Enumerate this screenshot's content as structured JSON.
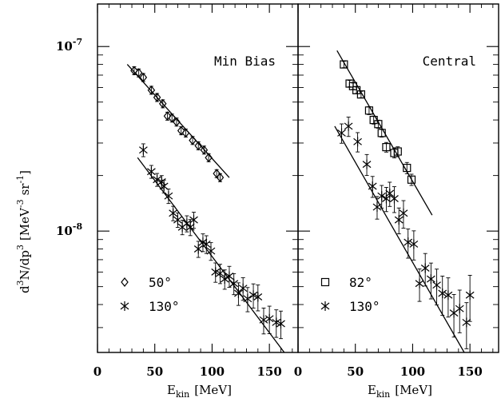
{
  "chart_data": [
    {
      "panel": "left",
      "type": "scatter",
      "title": "Min Bias",
      "xlabel_main": "E",
      "xlabel_sub": "kin",
      "xlabel_unit": "[MeV]",
      "ylabel_main": "d",
      "ylabel_sup1": "3",
      "ylabel_mid": "N/dp",
      "ylabel_sup2": "3",
      "ylabel_unit_pre": "[MeV",
      "ylabel_sup3": "-3",
      "ylabel_unit_mid": "sr",
      "ylabel_sup4": "-1",
      "ylabel_unit_post": "]",
      "xlim": [
        0,
        175
      ],
      "ylim": [
        2.2e-09,
        1.7e-07
      ],
      "yscale": "log",
      "x_ticks": [
        {
          "v": 0,
          "label": "0"
        },
        {
          "v": 50,
          "label": "50"
        },
        {
          "v": 100,
          "label": "100"
        },
        {
          "v": 150,
          "label": "150"
        }
      ],
      "y_ticks": [
        {
          "v": 1e-07,
          "base": "10",
          "exp": "-7"
        },
        {
          "v": 1e-08,
          "base": "10",
          "exp": "-8"
        }
      ],
      "series": [
        {
          "name": "50°",
          "legend_text": "50°",
          "marker": "diamond",
          "points": [
            {
              "x": 32,
              "y": 7.4e-08,
              "err": 0.05
            },
            {
              "x": 36,
              "y": 7.2e-08,
              "err": 0.05
            },
            {
              "x": 40,
              "y": 6.8e-08,
              "err": 0.05
            },
            {
              "x": 47,
              "y": 5.8e-08,
              "err": 0.05
            },
            {
              "x": 52,
              "y": 5.3e-08,
              "err": 0.05
            },
            {
              "x": 57,
              "y": 4.9e-08,
              "err": 0.05
            },
            {
              "x": 61,
              "y": 4.2e-08,
              "err": 0.05
            },
            {
              "x": 65,
              "y": 4.1e-08,
              "err": 0.05
            },
            {
              "x": 69,
              "y": 3.9e-08,
              "err": 0.05
            },
            {
              "x": 73,
              "y": 3.5e-08,
              "err": 0.05
            },
            {
              "x": 77,
              "y": 3.4e-08,
              "err": 0.05
            },
            {
              "x": 83,
              "y": 3.1e-08,
              "err": 0.05
            },
            {
              "x": 88,
              "y": 2.9e-08,
              "err": 0.05
            },
            {
              "x": 93,
              "y": 2.75e-08,
              "err": 0.05
            },
            {
              "x": 97,
              "y": 2.5e-08,
              "err": 0.05
            },
            {
              "x": 104,
              "y": 2.05e-08,
              "err": 0.05
            },
            {
              "x": 107,
              "y": 1.95e-08,
              "err": 0.05
            }
          ],
          "fit": [
            [
              26,
              8e-08
            ],
            [
              115,
              1.95e-08
            ]
          ]
        },
        {
          "name": "130°",
          "legend_text": "130°",
          "marker": "star",
          "points": [
            {
              "x": 40,
              "y": 2.75e-08,
              "err": 0.08
            },
            {
              "x": 47,
              "y": 2.1e-08,
              "err": 0.08
            },
            {
              "x": 52,
              "y": 1.9e-08,
              "err": 0.08
            },
            {
              "x": 56,
              "y": 1.85e-08,
              "err": 0.08
            },
            {
              "x": 58,
              "y": 1.75e-08,
              "err": 0.08
            },
            {
              "x": 62,
              "y": 1.55e-08,
              "err": 0.09
            },
            {
              "x": 66,
              "y": 1.25e-08,
              "err": 0.09
            },
            {
              "x": 70,
              "y": 1.15e-08,
              "err": 0.09
            },
            {
              "x": 74,
              "y": 1.05e-08,
              "err": 0.09
            },
            {
              "x": 78,
              "y": 1.1e-08,
              "err": 0.1
            },
            {
              "x": 81,
              "y": 1.05e-08,
              "err": 0.1
            },
            {
              "x": 84,
              "y": 1.15e-08,
              "err": 0.1
            },
            {
              "x": 88,
              "y": 8e-09,
              "err": 0.1
            },
            {
              "x": 92,
              "y": 8.7e-09,
              "err": 0.11
            },
            {
              "x": 95,
              "y": 8.5e-09,
              "err": 0.11
            },
            {
              "x": 99,
              "y": 7.8e-09,
              "err": 0.11
            },
            {
              "x": 103,
              "y": 6e-09,
              "err": 0.12
            },
            {
              "x": 107,
              "y": 5.9e-09,
              "err": 0.12
            },
            {
              "x": 111,
              "y": 5.5e-09,
              "err": 0.12
            },
            {
              "x": 115,
              "y": 5.7e-09,
              "err": 0.13
            },
            {
              "x": 119,
              "y": 5.2e-09,
              "err": 0.13
            },
            {
              "x": 123,
              "y": 4.6e-09,
              "err": 0.14
            },
            {
              "x": 127,
              "y": 4.9e-09,
              "err": 0.14
            },
            {
              "x": 131,
              "y": 4.3e-09,
              "err": 0.15
            },
            {
              "x": 136,
              "y": 4.5e-09,
              "err": 0.15
            },
            {
              "x": 140,
              "y": 4.4e-09,
              "err": 0.16
            },
            {
              "x": 145,
              "y": 3.3e-09,
              "err": 0.16
            },
            {
              "x": 150,
              "y": 3.35e-09,
              "err": 0.17
            },
            {
              "x": 156,
              "y": 3.2e-09,
              "err": 0.17
            },
            {
              "x": 160,
              "y": 3.15e-09,
              "err": 0.17
            }
          ],
          "fit": [
            [
              35,
              2.5e-08
            ],
            [
              163,
              2.2e-09
            ]
          ]
        }
      ]
    },
    {
      "panel": "right",
      "type": "scatter",
      "title": "Central",
      "xlabel_main": "E",
      "xlabel_sub": "kin",
      "xlabel_unit": "[MeV]",
      "xlim": [
        0,
        175
      ],
      "ylim": [
        2.2e-09,
        1.7e-07
      ],
      "yscale": "log",
      "x_ticks": [
        {
          "v": 0,
          "label": "0"
        },
        {
          "v": 50,
          "label": "50"
        },
        {
          "v": 100,
          "label": "100"
        },
        {
          "v": 150,
          "label": "150"
        }
      ],
      "series": [
        {
          "name": "82°",
          "legend_text": "82°",
          "marker": "square",
          "points": [
            {
              "x": 40,
              "y": 8e-08,
              "err": 0.04
            },
            {
              "x": 45,
              "y": 6.3e-08,
              "err": 0.04
            },
            {
              "x": 48,
              "y": 6.1e-08,
              "err": 0.04
            },
            {
              "x": 51,
              "y": 5.8e-08,
              "err": 0.04
            },
            {
              "x": 55,
              "y": 5.5e-08,
              "err": 0.04
            },
            {
              "x": 62,
              "y": 4.5e-08,
              "err": 0.05
            },
            {
              "x": 66,
              "y": 4e-08,
              "err": 0.05
            },
            {
              "x": 70,
              "y": 3.8e-08,
              "err": 0.05
            },
            {
              "x": 73,
              "y": 3.4e-08,
              "err": 0.05
            },
            {
              "x": 77,
              "y": 2.85e-08,
              "err": 0.06
            },
            {
              "x": 84,
              "y": 2.65e-08,
              "err": 0.06
            },
            {
              "x": 87,
              "y": 2.7e-08,
              "err": 0.06
            },
            {
              "x": 95,
              "y": 2.2e-08,
              "err": 0.07
            },
            {
              "x": 99,
              "y": 1.9e-08,
              "err": 0.07
            }
          ],
          "fit": [
            [
              34,
              9.5e-08
            ],
            [
              117,
              1.22e-08
            ]
          ]
        },
        {
          "name": "130°",
          "legend_text": "130°",
          "marker": "star",
          "points": [
            {
              "x": 38,
              "y": 3.4e-08,
              "err": 0.12
            },
            {
              "x": 44,
              "y": 3.7e-08,
              "err": 0.12
            },
            {
              "x": 52,
              "y": 3.05e-08,
              "err": 0.12
            },
            {
              "x": 60,
              "y": 2.3e-08,
              "err": 0.13
            },
            {
              "x": 65,
              "y": 1.75e-08,
              "err": 0.13
            },
            {
              "x": 69,
              "y": 1.35e-08,
              "err": 0.14
            },
            {
              "x": 73,
              "y": 1.55e-08,
              "err": 0.14
            },
            {
              "x": 77,
              "y": 1.5e-08,
              "err": 0.15
            },
            {
              "x": 80,
              "y": 1.6e-08,
              "err": 0.15
            },
            {
              "x": 84,
              "y": 1.5e-08,
              "err": 0.16
            },
            {
              "x": 88,
              "y": 1.15e-08,
              "err": 0.16
            },
            {
              "x": 92,
              "y": 1.25e-08,
              "err": 0.17
            },
            {
              "x": 96,
              "y": 8.7e-09,
              "err": 0.18
            },
            {
              "x": 101,
              "y": 8.5e-09,
              "err": 0.18
            },
            {
              "x": 106,
              "y": 5.2e-09,
              "err": 0.2
            },
            {
              "x": 111,
              "y": 6.3e-09,
              "err": 0.2
            },
            {
              "x": 116,
              "y": 5.5e-09,
              "err": 0.22
            },
            {
              "x": 121,
              "y": 5.1e-09,
              "err": 0.22
            },
            {
              "x": 126,
              "y": 4.6e-09,
              "err": 0.24
            },
            {
              "x": 131,
              "y": 4.5e-09,
              "err": 0.24
            },
            {
              "x": 136,
              "y": 3.6e-09,
              "err": 0.26
            },
            {
              "x": 141,
              "y": 3.8e-09,
              "err": 0.26
            },
            {
              "x": 147,
              "y": 3.2e-09,
              "err": 0.28
            },
            {
              "x": 150,
              "y": 4.5e-09,
              "err": 0.28
            }
          ],
          "fit": [
            [
              32,
              3.7e-08
            ],
            [
              145,
              2.2e-09
            ]
          ]
        }
      ]
    }
  ]
}
